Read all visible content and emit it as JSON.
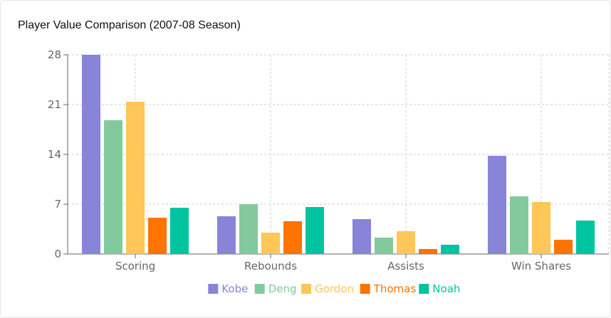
{
  "chart_data": {
    "type": "bar",
    "title": "Player Value Comparison (2007-08 Season)",
    "xlabel": "",
    "ylabel": "",
    "ylim": [
      0,
      28
    ],
    "yticks": [
      0,
      7,
      14,
      21,
      28
    ],
    "grid": true,
    "legend_position": "bottom",
    "categories": [
      "Scoring",
      "Rebounds",
      "Assists",
      "Win Shares"
    ],
    "series": [
      {
        "name": "Kobe",
        "color": "#8884d8",
        "values": [
          28.0,
          5.3,
          4.9,
          13.8
        ]
      },
      {
        "name": "Deng",
        "color": "#82ca9d",
        "values": [
          18.8,
          7.0,
          2.3,
          8.1
        ]
      },
      {
        "name": "Gordon",
        "color": "#ffc658",
        "values": [
          21.4,
          3.0,
          3.2,
          7.3
        ]
      },
      {
        "name": "Thomas",
        "color": "#ff7300",
        "values": [
          5.1,
          4.6,
          0.7,
          2.0
        ]
      },
      {
        "name": "Noah",
        "color": "#00c49f",
        "values": [
          6.5,
          6.6,
          1.3,
          4.7
        ]
      }
    ]
  }
}
